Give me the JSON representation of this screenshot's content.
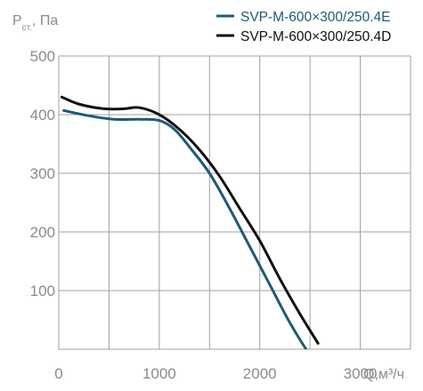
{
  "chart_data": {
    "type": "line",
    "ylabel_main": "P",
    "ylabel_sub": "ст.",
    "ylabel_unit": ", Па",
    "xlabel": "Q,м³/ч",
    "xlim": [
      0,
      3500
    ],
    "ylim": [
      0,
      500
    ],
    "x_ticks": [
      0,
      1000,
      2000,
      3000
    ],
    "y_ticks": [
      100,
      200,
      300,
      400,
      500
    ],
    "grid": true,
    "legend_position": "top-right",
    "series": [
      {
        "name": "SVP-M-600×300/250.4E",
        "color": "#1e5a78",
        "x": [
          50,
          300,
          550,
          800,
          1000,
          1150,
          1300,
          1500,
          1700,
          1900,
          2100,
          2300,
          2500,
          2700
        ],
        "y": [
          407,
          398,
          392,
          392,
          390,
          375,
          345,
          300,
          240,
          175,
          110,
          45,
          -10,
          -55
        ]
      },
      {
        "name": "SVP-M-600×300/250.4D",
        "color": "#111111",
        "x": [
          30,
          200,
          450,
          650,
          800,
          1000,
          1200,
          1400,
          1600,
          1800,
          2000,
          2200,
          2400,
          2580
        ],
        "y": [
          430,
          418,
          410,
          410,
          412,
          400,
          375,
          340,
          295,
          240,
          185,
          120,
          60,
          10
        ]
      }
    ]
  }
}
